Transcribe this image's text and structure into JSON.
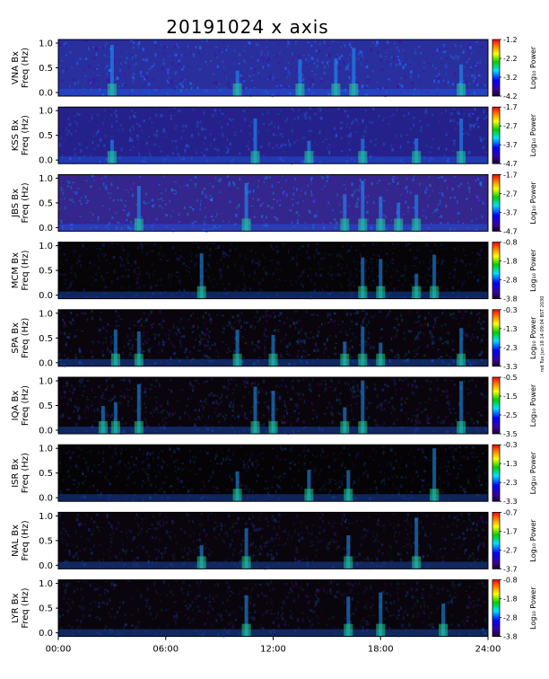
{
  "chart_data": {
    "type": "heatmap",
    "title": "20191024 x axis",
    "x_range": [
      0,
      24
    ],
    "x_ticks": [
      "00:00",
      "06:00",
      "12:00",
      "18:00",
      "24:00"
    ],
    "y_ticks": [
      "0.0",
      "0.5",
      "1.0"
    ],
    "colorbar_label": "Log₁₀ Power",
    "stamp": "rsd Tue Jun 18 14:09:04 BST 2030",
    "panels": [
      {
        "station": "VNA Bx",
        "freq_label": "Freq (Hz)",
        "range": [
          -4.2,
          -1.2
        ],
        "cb_ticks": [
          "-1.2",
          "-2.2",
          "-3.2",
          "-4.2"
        ],
        "bg": "#2a2f9e"
      },
      {
        "station": "KSS Bx",
        "freq_label": "Freq (Hz)",
        "range": [
          -4.7,
          -1.7
        ],
        "cb_ticks": [
          "-1.7",
          "-2.7",
          "-3.7",
          "-4.7"
        ],
        "bg": "#24228a"
      },
      {
        "station": "JBS Bx",
        "freq_label": "Freq (Hz)",
        "range": [
          -4.7,
          -1.7
        ],
        "cb_ticks": [
          "-1.7",
          "-2.7",
          "-3.7",
          "-4.7"
        ],
        "bg": "#33268c"
      },
      {
        "station": "MCM Bx",
        "freq_label": "Freq (Hz)",
        "range": [
          -3.8,
          -0.8
        ],
        "cb_ticks": [
          "-0.8",
          "-1.8",
          "-2.8",
          "-3.8"
        ],
        "bg": "#060406"
      },
      {
        "station": "SPA Bx",
        "freq_label": "Freq (Hz)",
        "range": [
          -3.3,
          -0.3
        ],
        "cb_ticks": [
          "-0.3",
          "-1.3",
          "-2.3",
          "-3.3"
        ],
        "bg": "#0a050c"
      },
      {
        "station": "IQA Bx",
        "freq_label": "Freq (Hz)",
        "range": [
          -3.5,
          -0.5
        ],
        "cb_ticks": [
          "-0.5",
          "-1.5",
          "-2.5",
          "-3.5"
        ],
        "bg": "#0a050c"
      },
      {
        "station": "ISR Bx",
        "freq_label": "Freq (Hz)",
        "range": [
          -3.3,
          -0.3
        ],
        "cb_ticks": [
          "-0.3",
          "-1.3",
          "-2.3",
          "-3.3"
        ],
        "bg": "#050305"
      },
      {
        "station": "NAL Bx",
        "freq_label": "Freq (Hz)",
        "range": [
          -3.7,
          -0.7
        ],
        "cb_ticks": [
          "-0.7",
          "-1.7",
          "-2.7",
          "-3.7"
        ],
        "bg": "#0a050c"
      },
      {
        "station": "LYR Bx",
        "freq_label": "Freq (Hz)",
        "range": [
          -3.8,
          -0.8
        ],
        "cb_ticks": [
          "-0.8",
          "-1.8",
          "-2.8",
          "-3.8"
        ],
        "bg": "#0a050c"
      }
    ]
  }
}
